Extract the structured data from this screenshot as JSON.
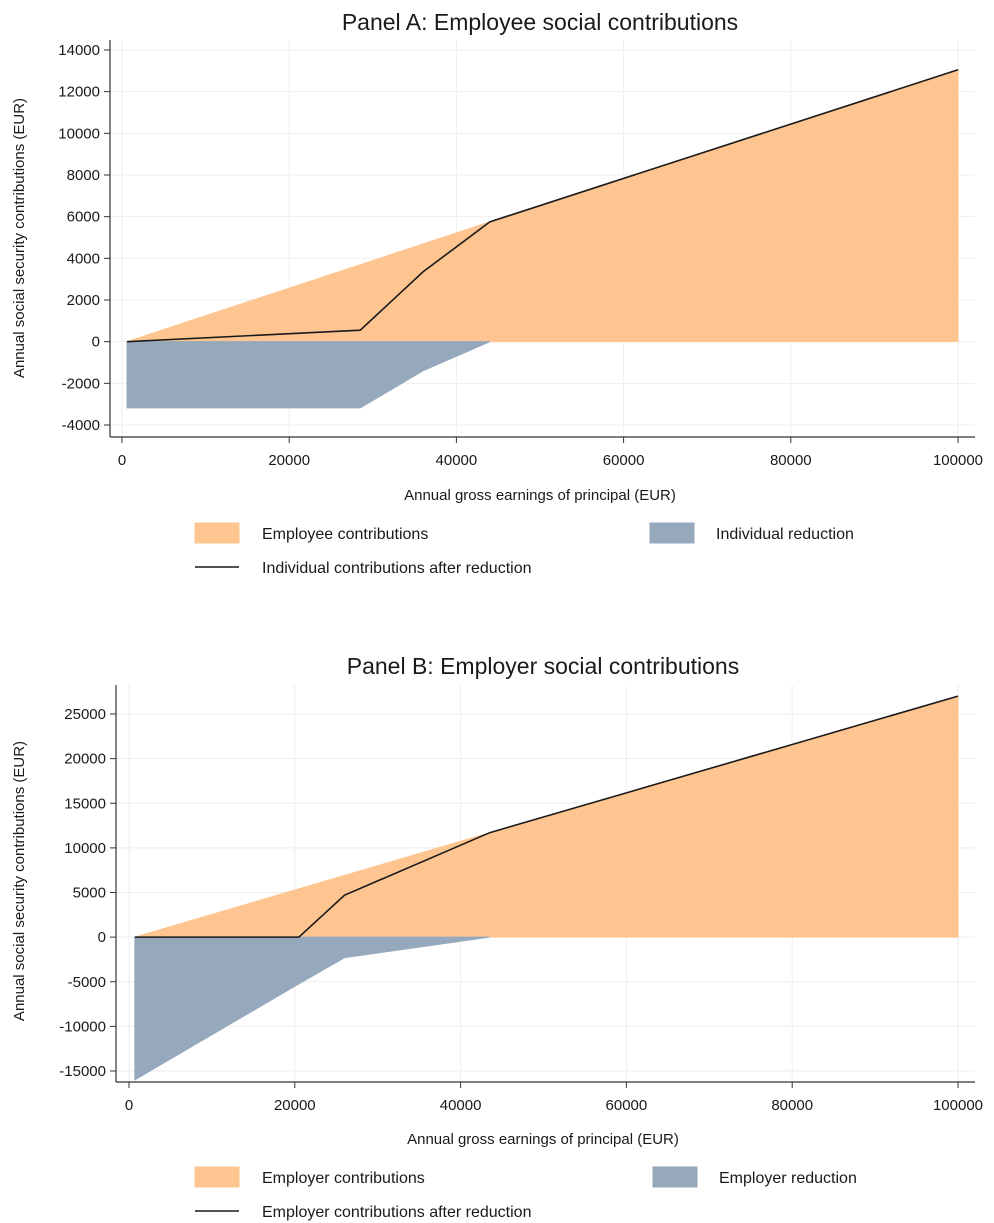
{
  "chart_data": [
    {
      "type": "area",
      "title": "Panel A: Employee social contributions",
      "xlabel": "Annual gross earnings of principal (EUR)",
      "ylabel": "Annual social security contributions (EUR)",
      "xlim": [
        0,
        100000
      ],
      "ylim": [
        -4000,
        14000
      ],
      "xticks": [
        0,
        20000,
        40000,
        60000,
        80000,
        100000
      ],
      "yticks": [
        -4000,
        -2000,
        0,
        2000,
        4000,
        6000,
        8000,
        10000,
        12000,
        14000
      ],
      "grid": true,
      "legend_position": "bottom",
      "series": [
        {
          "name": "Employee contributions",
          "kind": "area",
          "color": "#fec590",
          "x": [
            600,
            44000,
            100000
          ],
          "y": [
            0,
            5750,
            13050
          ]
        },
        {
          "name": "Individual reduction",
          "kind": "area",
          "color": "#96a8bc",
          "x": [
            600,
            28500,
            36000,
            44000
          ],
          "y": [
            -3180,
            -3180,
            -1400,
            0
          ]
        },
        {
          "name": "Individual contributions after reduction",
          "kind": "line",
          "color": "#1a1a1a",
          "x": [
            600,
            28500,
            36000,
            44000,
            100000
          ],
          "y": [
            0,
            550,
            3350,
            5750,
            13050
          ]
        }
      ]
    },
    {
      "type": "area",
      "title": "Panel B: Employer social contributions",
      "xlabel": "Annual gross earnings of principal (EUR)",
      "ylabel": "Annual social security contributions (EUR)",
      "xlim": [
        0,
        100000
      ],
      "ylim": [
        -15000,
        25000
      ],
      "xticks": [
        0,
        20000,
        40000,
        60000,
        80000,
        100000
      ],
      "yticks": [
        -15000,
        -10000,
        -5000,
        0,
        5000,
        10000,
        15000,
        20000,
        25000
      ],
      "grid": true,
      "legend_position": "bottom",
      "series": [
        {
          "name": "Employer contributions",
          "kind": "area",
          "color": "#fec590",
          "x": [
            700,
            43500,
            100000
          ],
          "y": [
            0,
            11700,
            27000
          ]
        },
        {
          "name": "Employer reduction",
          "kind": "area",
          "color": "#96a8bc",
          "x": [
            700,
            20000,
            26000,
            43500
          ],
          "y": [
            -16000,
            -5500,
            -2300,
            0
          ]
        },
        {
          "name": "Employer contributions after reduction",
          "kind": "line",
          "color": "#1a1a1a",
          "x": [
            700,
            20500,
            26000,
            43500,
            100000
          ],
          "y": [
            0,
            0,
            4700,
            11700,
            27000
          ]
        }
      ]
    }
  ]
}
